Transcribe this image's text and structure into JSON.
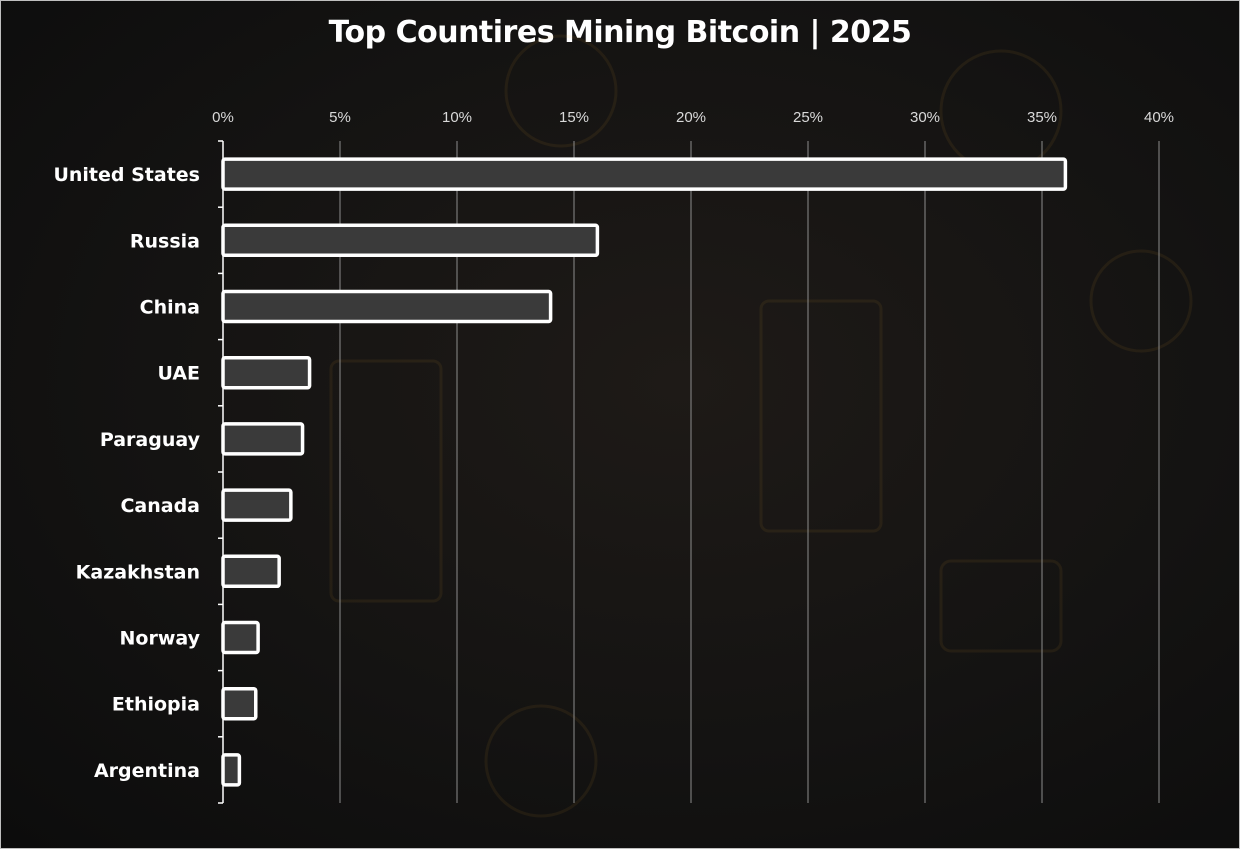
{
  "title": "Top Countires Mining Bitcoin | 2025",
  "chart_data": {
    "type": "bar",
    "orientation": "horizontal",
    "title": "Top Countires Mining Bitcoin | 2025",
    "categories": [
      "United States",
      "Russia",
      "China",
      "UAE",
      "Paraguay",
      "Canada",
      "Kazakhstan",
      "Norway",
      "Ethiopia",
      "Argentina"
    ],
    "values": [
      36,
      16,
      14,
      3.7,
      3.4,
      2.9,
      2.4,
      1.5,
      1.4,
      0.7
    ],
    "unit": "%",
    "xlim": [
      0,
      40
    ],
    "xticks": [
      "0%",
      "5%",
      "10%",
      "15%",
      "20%",
      "25%",
      "30%",
      "35%",
      "40%"
    ],
    "xaxis_position": "top",
    "grid": true,
    "legend": "none",
    "colors": {
      "bar_fill": "#3a3a3a",
      "bar_stroke": "#ffffff",
      "grid": "#8c8c8c",
      "text": "#ffffff"
    }
  }
}
